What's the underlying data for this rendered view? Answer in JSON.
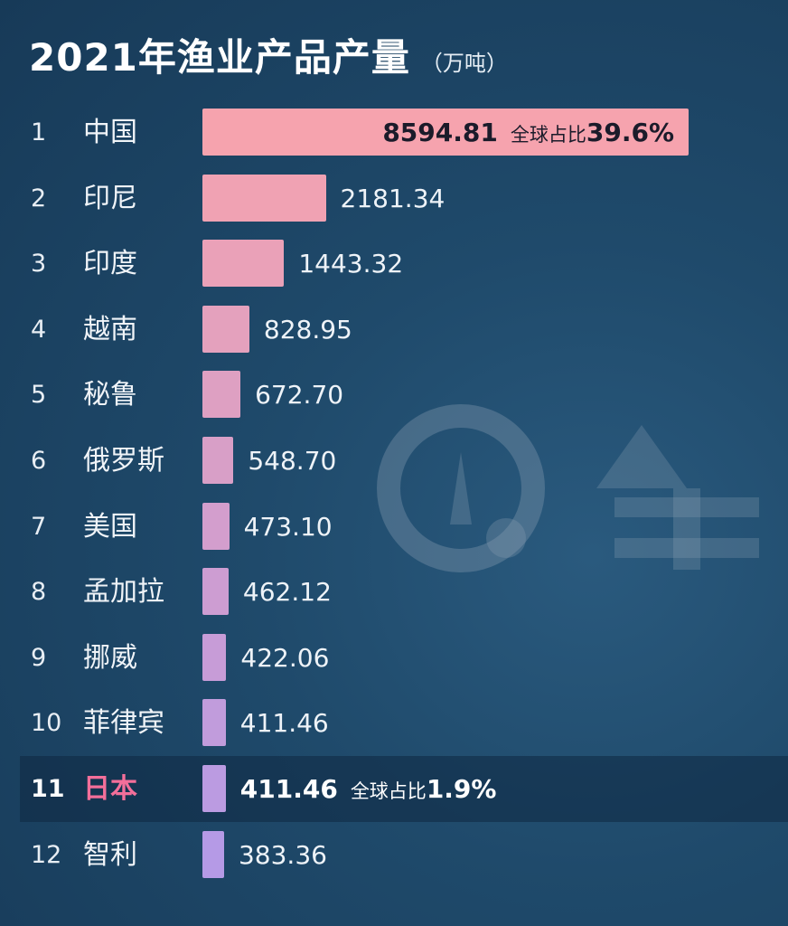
{
  "title": "2021年渔业产品产量",
  "unit": "（万吨）",
  "colors": {
    "bar_top": "#f6a3ae",
    "bar_bottom": "#b59ae6",
    "highlight_country": "#f36f9a",
    "background": "#1f4a6b"
  },
  "chart_data": {
    "type": "bar",
    "orientation": "horizontal",
    "title": "2021年渔业产品产量",
    "unit": "（万吨）",
    "categories": [
      "中国",
      "印尼",
      "印度",
      "越南",
      "秘鲁",
      "俄罗斯",
      "美国",
      "孟加拉",
      "挪威",
      "菲律宾",
      "日本",
      "智利"
    ],
    "ranks": [
      "1",
      "2",
      "3",
      "4",
      "5",
      "6",
      "7",
      "8",
      "9",
      "10",
      "11",
      "12"
    ],
    "values": [
      8594.81,
      2181.34,
      1443.32,
      828.95,
      672.7,
      548.7,
      473.1,
      462.12,
      422.06,
      411.46,
      411.46,
      383.36
    ],
    "value_labels": [
      "8594.81",
      "2181.34",
      "1443.32",
      "828.95",
      "672.70",
      "548.70",
      "473.10",
      "462.12",
      "422.06",
      "411.46",
      "411.46",
      "383.36"
    ],
    "annotations": [
      {
        "index": 0,
        "label": "全球占比",
        "value": "39.6%"
      },
      {
        "index": 10,
        "label": "全球占比",
        "value": "1.9%"
      }
    ],
    "highlight_index": 10
  }
}
